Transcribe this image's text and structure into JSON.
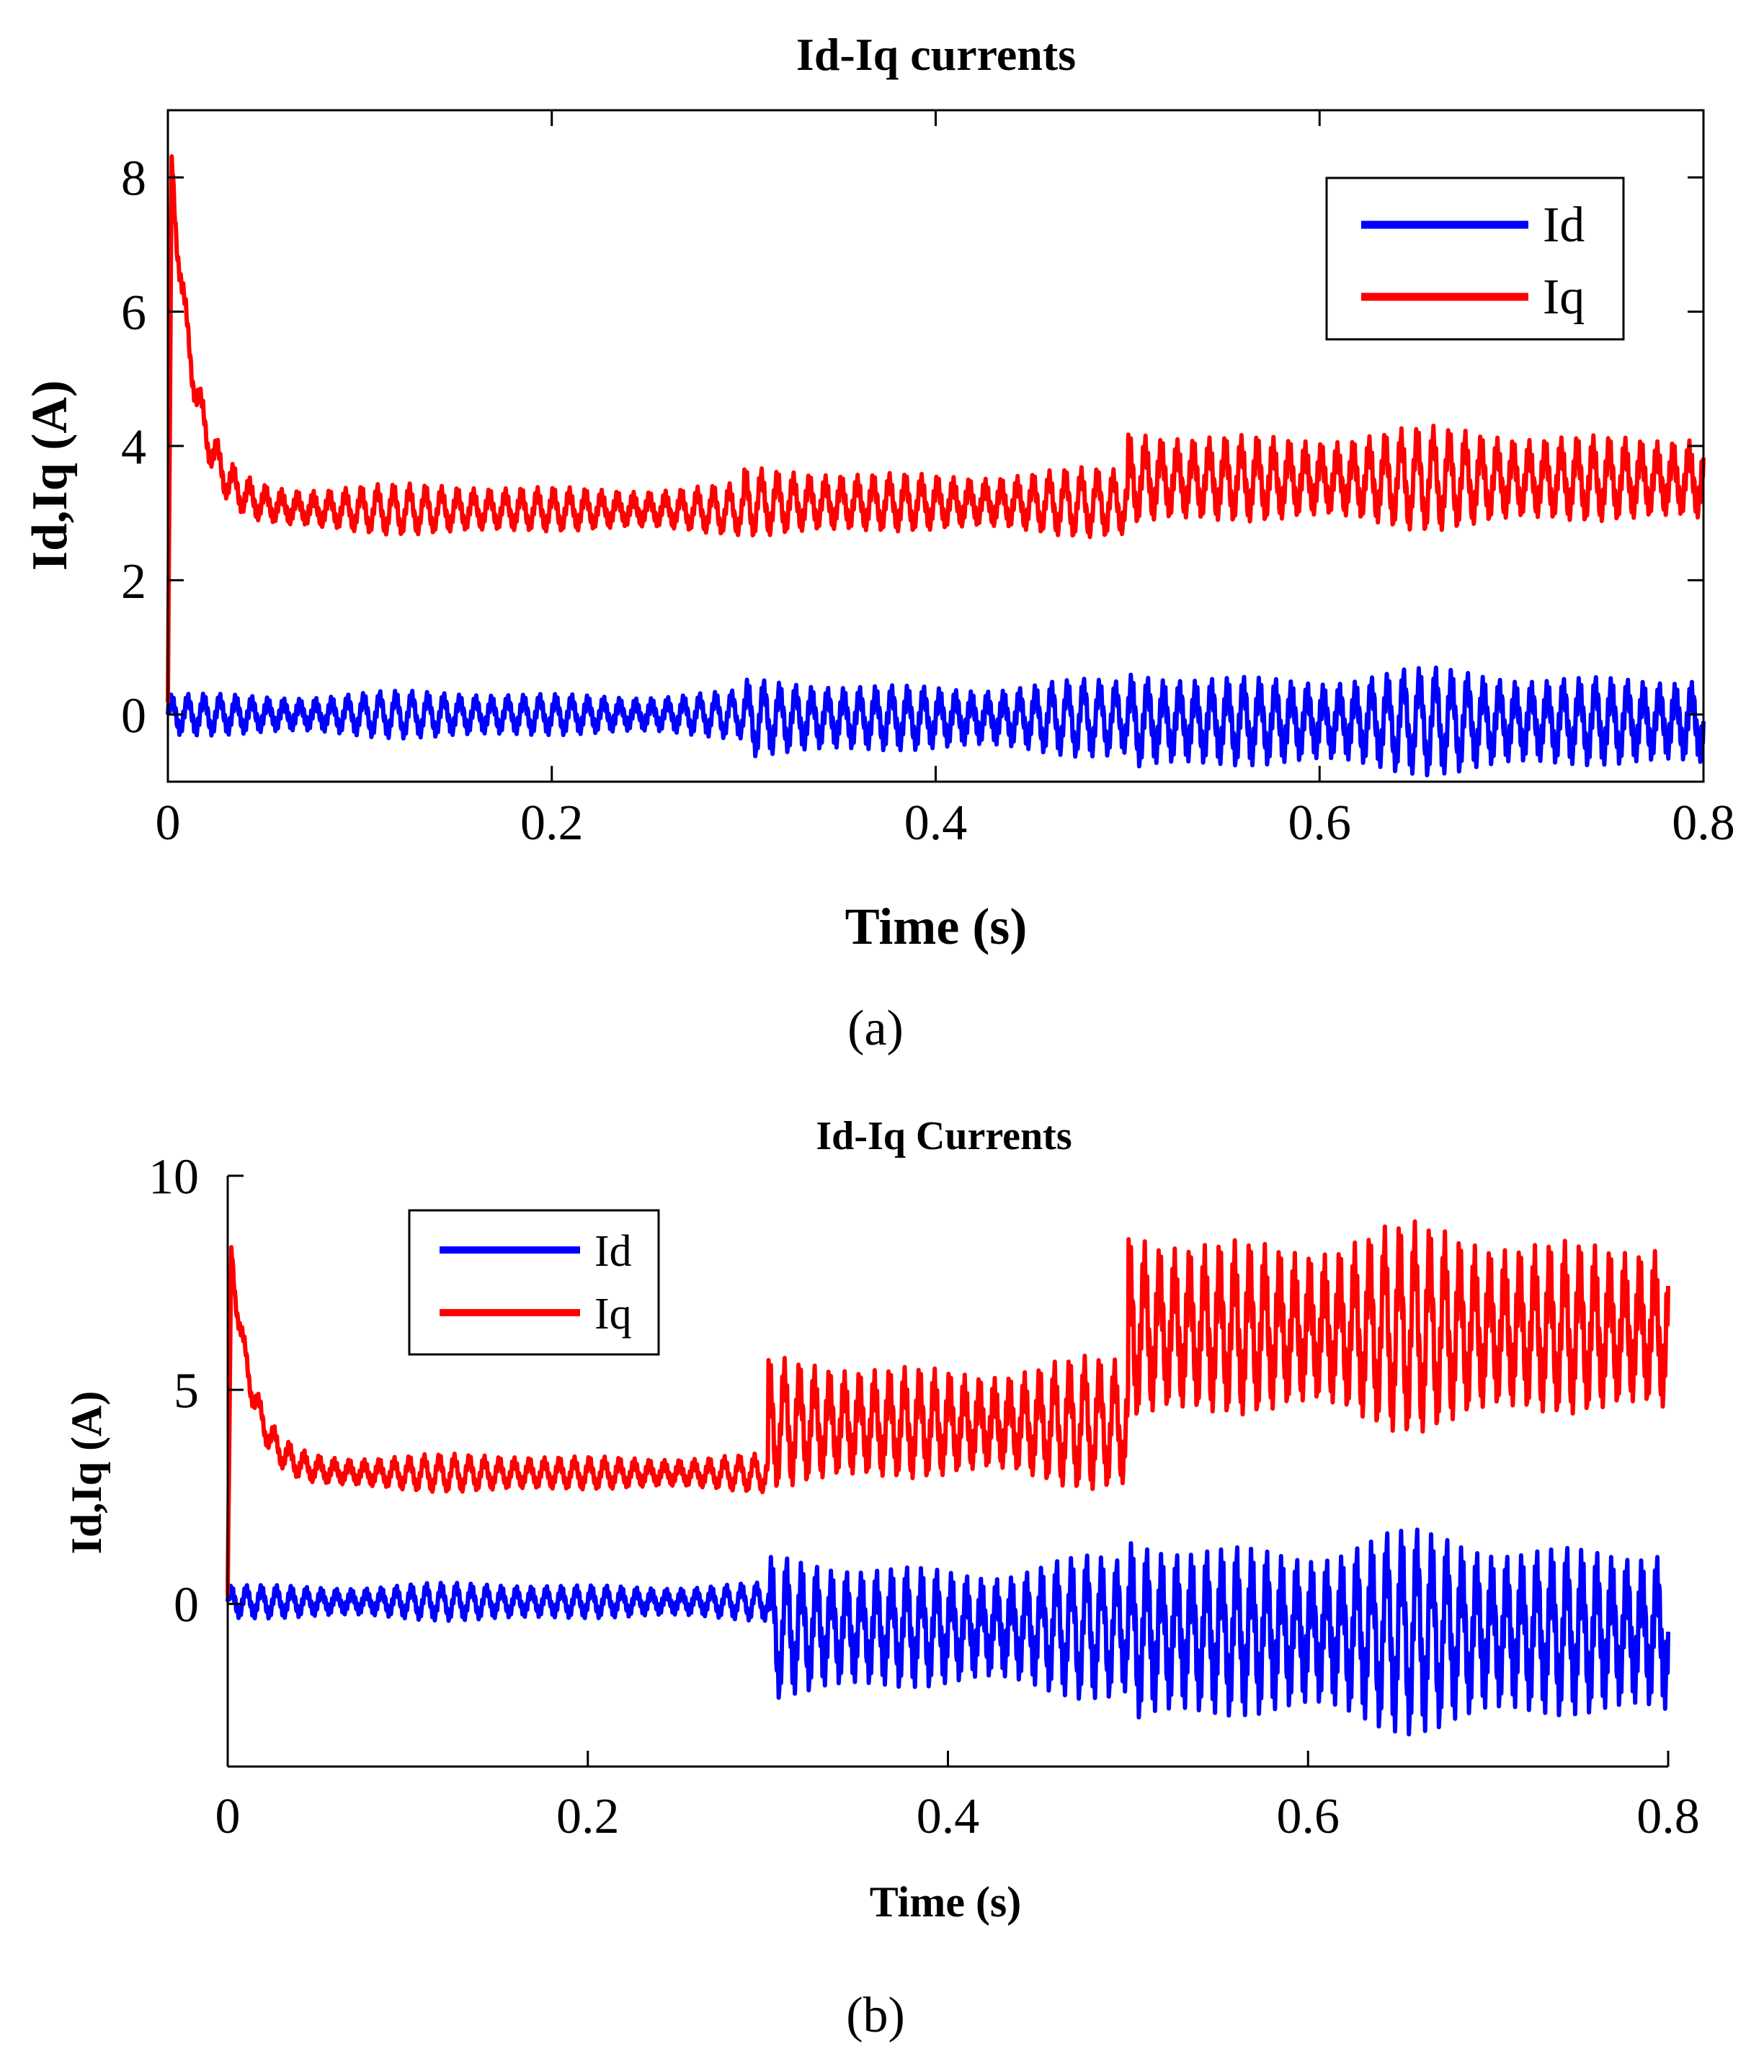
{
  "colors": {
    "id": "#0000ff",
    "iq": "#ff0000",
    "axis": "#000000"
  },
  "chart_data": [
    {
      "type": "line",
      "title": "Id-Iq currents",
      "xlabel": "Time (s)",
      "ylabel": "Id,Iq (A)",
      "caption": "(a)",
      "xlim": [
        0,
        0.8
      ],
      "ylim": [
        -1,
        9
      ],
      "xticks": [
        0,
        0.2,
        0.4,
        0.6,
        0.8
      ],
      "xtick_labels": [
        "0",
        "0.2",
        "0.4",
        "0.6",
        "0.8"
      ],
      "yticks": [
        0,
        2,
        4,
        6,
        8
      ],
      "ytick_labels": [
        "0",
        "2",
        "4",
        "6",
        "8"
      ],
      "legend": {
        "position": "top-right",
        "entries": [
          "Id",
          "Iq"
        ]
      },
      "series": [
        {
          "name": "Id",
          "color": "#0000ff",
          "segments": [
            {
              "t_start": 0,
              "t_end": 0.3,
              "mean": 0.0,
              "amplitude": 0.28
            },
            {
              "t_start": 0.3,
              "t_end": 0.5,
              "mean": -0.05,
              "amplitude": 0.45
            },
            {
              "t_start": 0.5,
              "t_end": 0.8,
              "mean": -0.1,
              "amplitude": 0.62
            }
          ]
        },
        {
          "name": "Iq",
          "color": "#ff0000",
          "peak": 8.2,
          "decay_tau": 0.012,
          "segments": [
            {
              "t_start": 0,
              "t_end": 0.3,
              "mean": 3.05,
              "amplitude": 0.3
            },
            {
              "t_start": 0.3,
              "t_end": 0.5,
              "mean": 3.15,
              "amplitude": 0.4
            },
            {
              "t_start": 0.5,
              "t_end": 0.8,
              "mean": 3.5,
              "amplitude": 0.6
            }
          ]
        }
      ]
    },
    {
      "type": "line",
      "title": "Id-Iq Currents",
      "xlabel": "Time (s)",
      "ylabel": "Id,Iq (A)",
      "caption": "(b)",
      "xlim": [
        0,
        0.8
      ],
      "ylim": [
        -3.8,
        10
      ],
      "xticks": [
        0,
        0.2,
        0.4,
        0.6,
        0.8
      ],
      "xtick_labels": [
        "0",
        "0.2",
        "0.4",
        "0.6",
        "0.8"
      ],
      "yticks": [
        0,
        5,
        10
      ],
      "ytick_labels": [
        "0",
        "5",
        "10"
      ],
      "legend": {
        "position": "top-left",
        "entries": [
          "Id",
          "Iq"
        ]
      },
      "series": [
        {
          "name": "Id",
          "color": "#0000ff",
          "segments": [
            {
              "t_start": 0,
              "t_end": 0.3,
              "mean": 0.05,
              "amplitude": 0.35
            },
            {
              "t_start": 0.3,
              "t_end": 0.5,
              "mean": -0.55,
              "amplitude": 1.3
            },
            {
              "t_start": 0.5,
              "t_end": 0.8,
              "mean": -0.65,
              "amplitude": 1.85
            }
          ]
        },
        {
          "name": "Iq",
          "color": "#ff0000",
          "peak": 8.2,
          "decay_tau": 0.012,
          "segments": [
            {
              "t_start": 0,
              "t_end": 0.3,
              "mean": 3.05,
              "amplitude": 0.35
            },
            {
              "t_start": 0.3,
              "t_end": 0.5,
              "mean": 4.2,
              "amplitude": 1.2
            },
            {
              "t_start": 0.5,
              "t_end": 0.8,
              "mean": 6.4,
              "amplitude": 1.9
            }
          ]
        }
      ]
    }
  ]
}
